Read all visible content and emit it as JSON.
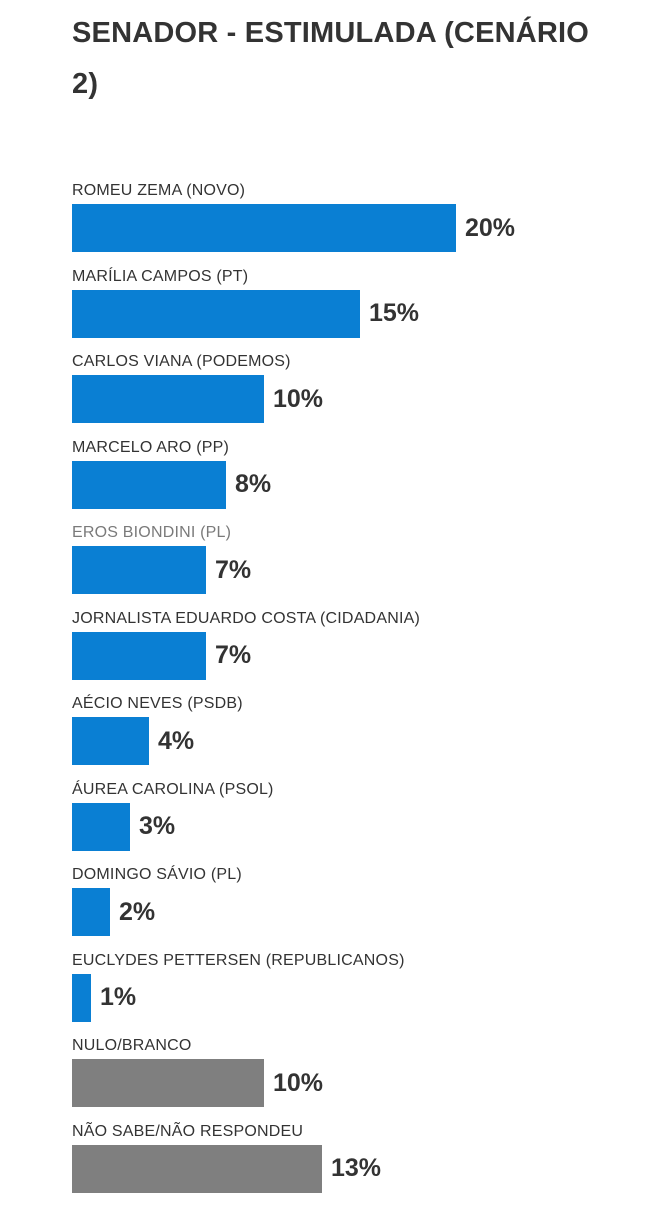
{
  "title": "SENADOR - ESTIMULADA (CENÁRIO 2)",
  "colors": {
    "candidate": "#0a7fd3",
    "other": "#7f7f7f",
    "text": "#333333",
    "muted_label": "#7a7a7a"
  },
  "chart_data": {
    "type": "bar",
    "orientation": "horizontal",
    "title": "SENADOR - ESTIMULADA (CENÁRIO 2)",
    "xlim": [
      0,
      20
    ],
    "grid": false,
    "categories": [
      "ROMEU ZEMA (NOVO)",
      "MARÍLIA CAMPOS (PT)",
      "CARLOS VIANA (PODEMOS)",
      "MARCELO ARO (PP)",
      "EROS BIONDINI (PL)",
      "JORNALISTA EDUARDO COSTA (CIDADANIA)",
      "AÉCIO NEVES (PSDB)",
      "ÁUREA CAROLINA (PSOL)",
      "DOMINGO SÁVIO (PL)",
      "EUCLYDES PETTERSEN (REPUBLICANOS)",
      "NULO/BRANCO",
      "NÃO SABE/NÃO RESPONDEU"
    ],
    "values": [
      20,
      15,
      10,
      8,
      7,
      7,
      4,
      3,
      2,
      1,
      10,
      13
    ],
    "labels": [
      "20%",
      "15%",
      "10%",
      "8%",
      "7%",
      "7%",
      "4%",
      "3%",
      "2%",
      "1%",
      "10%",
      "13%"
    ],
    "bar_colors": [
      "candidate",
      "candidate",
      "candidate",
      "candidate",
      "candidate",
      "candidate",
      "candidate",
      "candidate",
      "candidate",
      "candidate",
      "other",
      "other"
    ],
    "muted_labels": [
      false,
      false,
      false,
      false,
      true,
      false,
      false,
      false,
      false,
      false,
      false,
      false
    ]
  }
}
